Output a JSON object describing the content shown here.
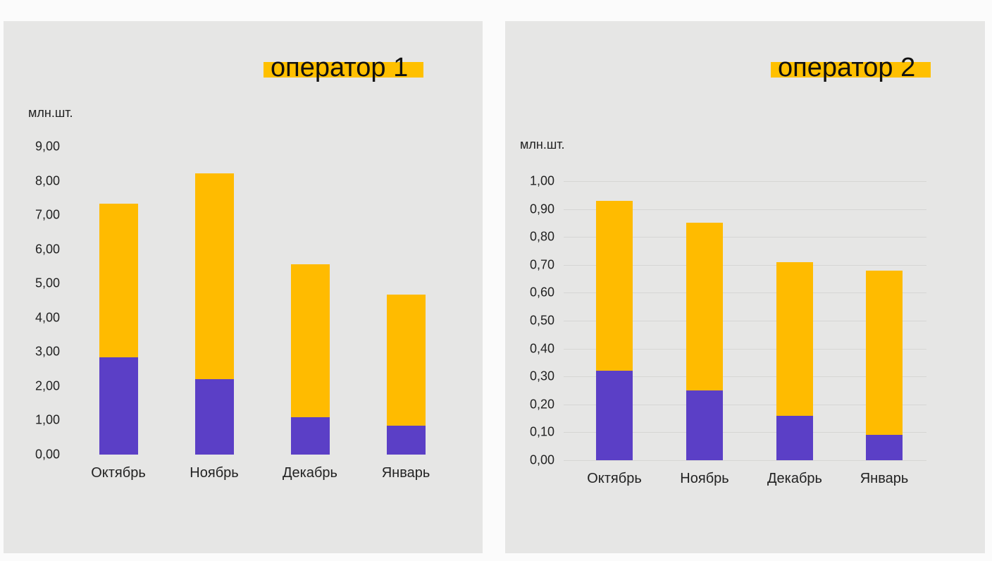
{
  "colors": {
    "bottom": "#5b3fc6",
    "top": "#ffbb00",
    "title_highlight": "#ffc000"
  },
  "chart_data": [
    {
      "type": "bar",
      "stacked": true,
      "title": "оператор 1",
      "ylabel": "млн.шт.",
      "ylim": [
        0,
        9
      ],
      "yticks": [
        "0,00",
        "1,00",
        "2,00",
        "3,00",
        "4,00",
        "5,00",
        "6,00",
        "7,00",
        "8,00",
        "9,00"
      ],
      "grid": false,
      "categories": [
        "Октябрь",
        "Ноябрь",
        "Декабрь",
        "Январь"
      ],
      "series": [
        {
          "name": "bottom",
          "values": [
            2.84,
            2.2,
            1.09,
            0.84
          ]
        },
        {
          "name": "top",
          "values": [
            4.49,
            6.01,
            4.47,
            3.83
          ]
        }
      ],
      "totals": [
        7.33,
        8.21,
        5.56,
        4.67
      ]
    },
    {
      "type": "bar",
      "stacked": true,
      "title": "оператор 2",
      "ylabel": "млн.шт.",
      "ylim": [
        0,
        1
      ],
      "yticks": [
        "0,00",
        "0,10",
        "0,20",
        "0,30",
        "0,40",
        "0,50",
        "0,60",
        "0,70",
        "0,80",
        "0,90",
        "1,00"
      ],
      "grid": true,
      "categories": [
        "Октябрь",
        "Ноябрь",
        "Декабрь",
        "Январь"
      ],
      "series": [
        {
          "name": "bottom",
          "values": [
            0.32,
            0.25,
            0.16,
            0.09
          ]
        },
        {
          "name": "top",
          "values": [
            0.61,
            0.6,
            0.55,
            0.59
          ]
        }
      ],
      "totals": [
        0.93,
        0.85,
        0.71,
        0.68
      ]
    }
  ]
}
